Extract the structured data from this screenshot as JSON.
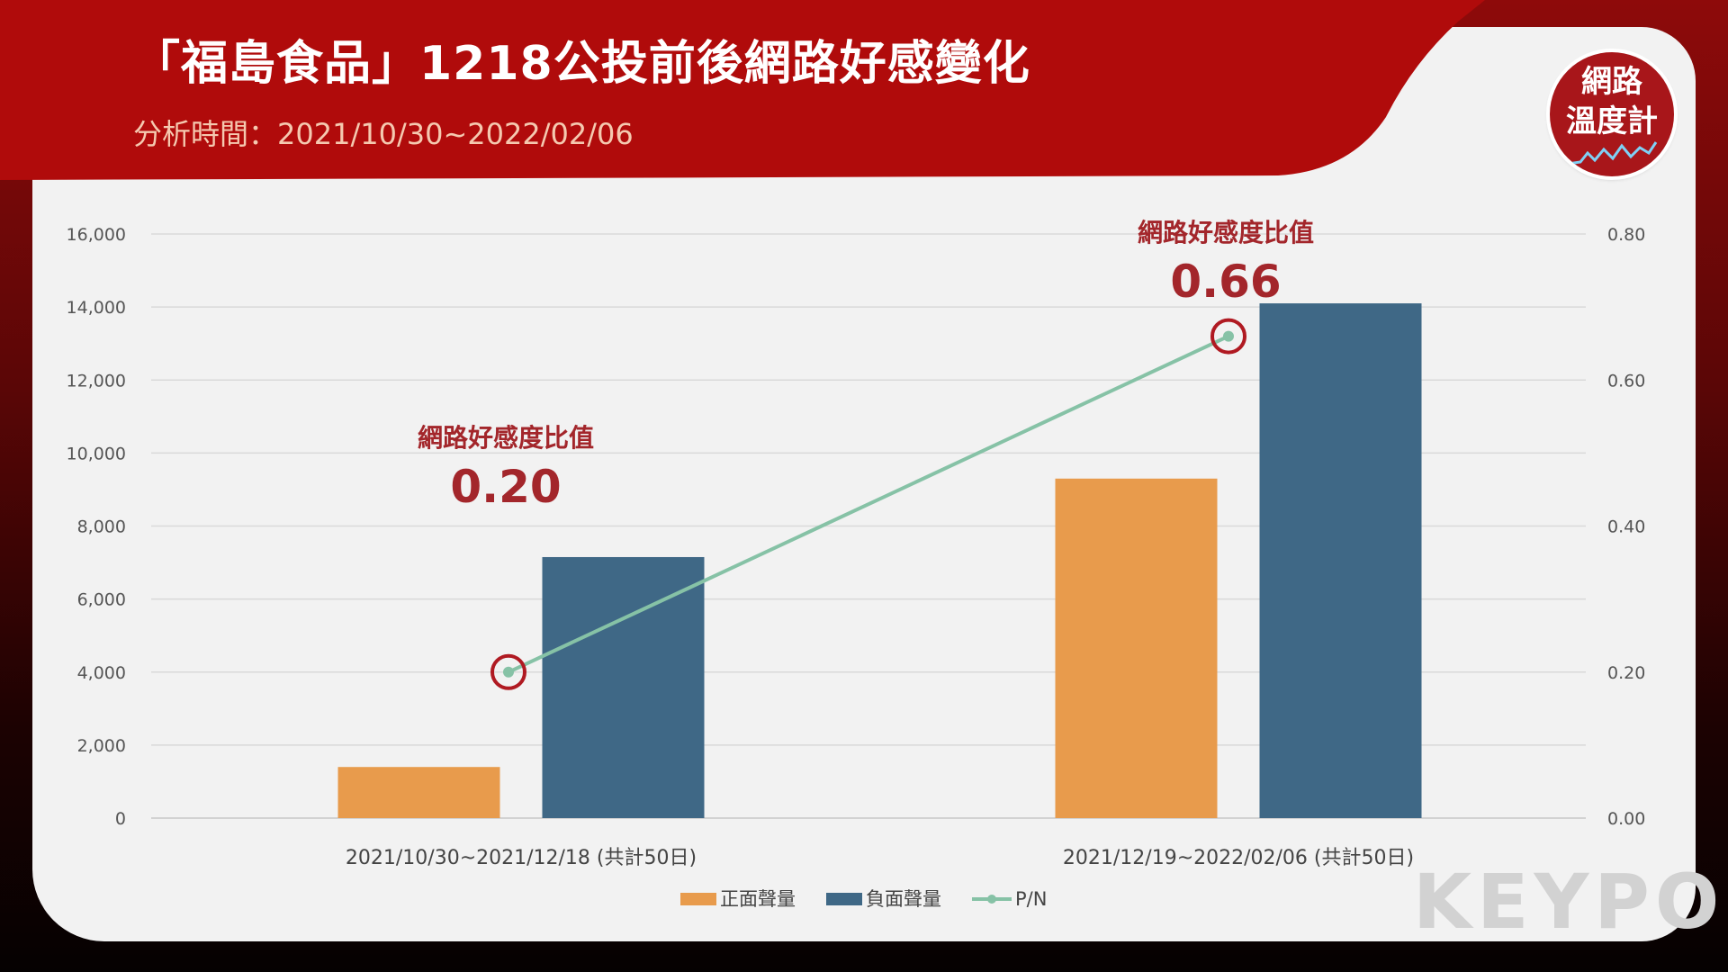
{
  "header": {
    "title": "「福島食品」1218公投前後網路好感變化",
    "subtitle": "分析時間：2021/10/30~2022/02/06"
  },
  "logo": {
    "line1": "網路",
    "line2": "溫度計"
  },
  "watermark": "KEYPO",
  "colors": {
    "positive": "#e89b4c",
    "negative": "#3f6886",
    "ratio": "#86c2a6",
    "highlight": "#b01a22",
    "banner": "#b00b0b"
  },
  "chart_data": {
    "type": "bar",
    "categories": [
      "2021/10/30~2021/12/18 (共計50日)",
      "2021/12/19~2022/02/06 (共計50日)"
    ],
    "series": [
      {
        "name": "正面聲量",
        "type": "bar",
        "axis": "left",
        "values": [
          1400,
          9300
        ]
      },
      {
        "name": "負面聲量",
        "type": "bar",
        "axis": "left",
        "values": [
          7150,
          14100
        ]
      },
      {
        "name": "P/N",
        "type": "line",
        "axis": "right",
        "values": [
          0.2,
          0.66
        ]
      }
    ],
    "ylim": [
      0,
      16000
    ],
    "yticks": [
      "0",
      "2,000",
      "4,000",
      "6,000",
      "8,000",
      "10,000",
      "12,000",
      "14,000",
      "16,000"
    ],
    "y2lim": [
      0,
      0.8
    ],
    "y2ticks": [
      "0.00",
      "0.20",
      "0.40",
      "0.60",
      "0.80"
    ],
    "grid": true,
    "legend_position": "bottom",
    "annotations": [
      {
        "category": 0,
        "label": "網路好感度比值",
        "value": "0.20"
      },
      {
        "category": 1,
        "label": "網路好感度比值",
        "value": "0.66"
      }
    ]
  }
}
